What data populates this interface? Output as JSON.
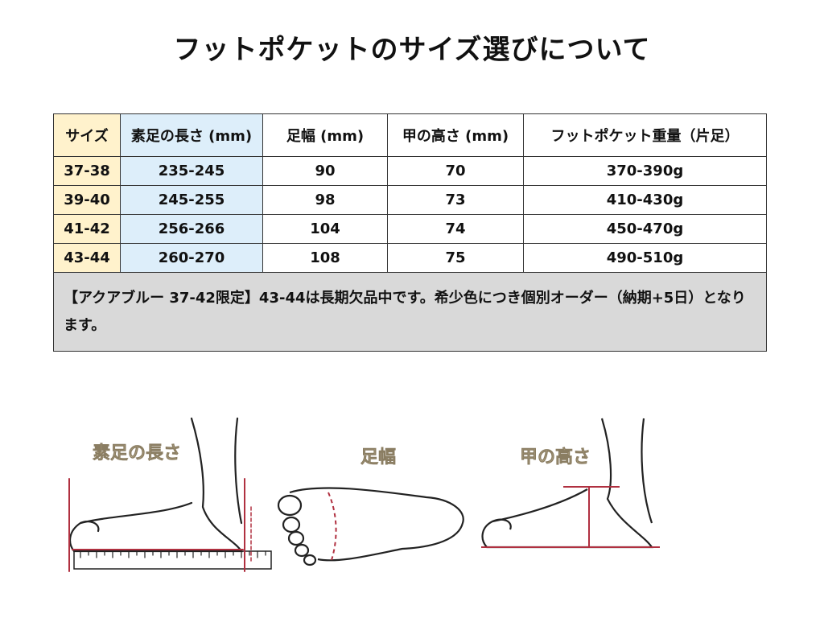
{
  "header": {
    "title": "フットポケットのサイズ選びについて"
  },
  "table": {
    "columns": [
      "サイズ",
      "素足の長さ (mm)",
      "足幅 (mm)",
      "甲の高さ (mm)",
      "フットポケット重量（片足）"
    ],
    "rows": [
      [
        "37-38",
        "235-245",
        "90",
        "70",
        "370-390g"
      ],
      [
        "39-40",
        "245-255",
        "98",
        "73",
        "410-430g"
      ],
      [
        "41-42",
        "256-266",
        "104",
        "74",
        "450-470g"
      ],
      [
        "43-44",
        "260-270",
        "108",
        "75",
        "490-510g"
      ]
    ],
    "note": "【アクアブルー 37-42限定】43-44は長期欠品中です。希少色につき個別オーダー（納期+5日）となります。"
  },
  "illustrations": [
    {
      "label": "素足の長さ"
    },
    {
      "label": "足幅"
    },
    {
      "label": "甲の高さ"
    }
  ]
}
